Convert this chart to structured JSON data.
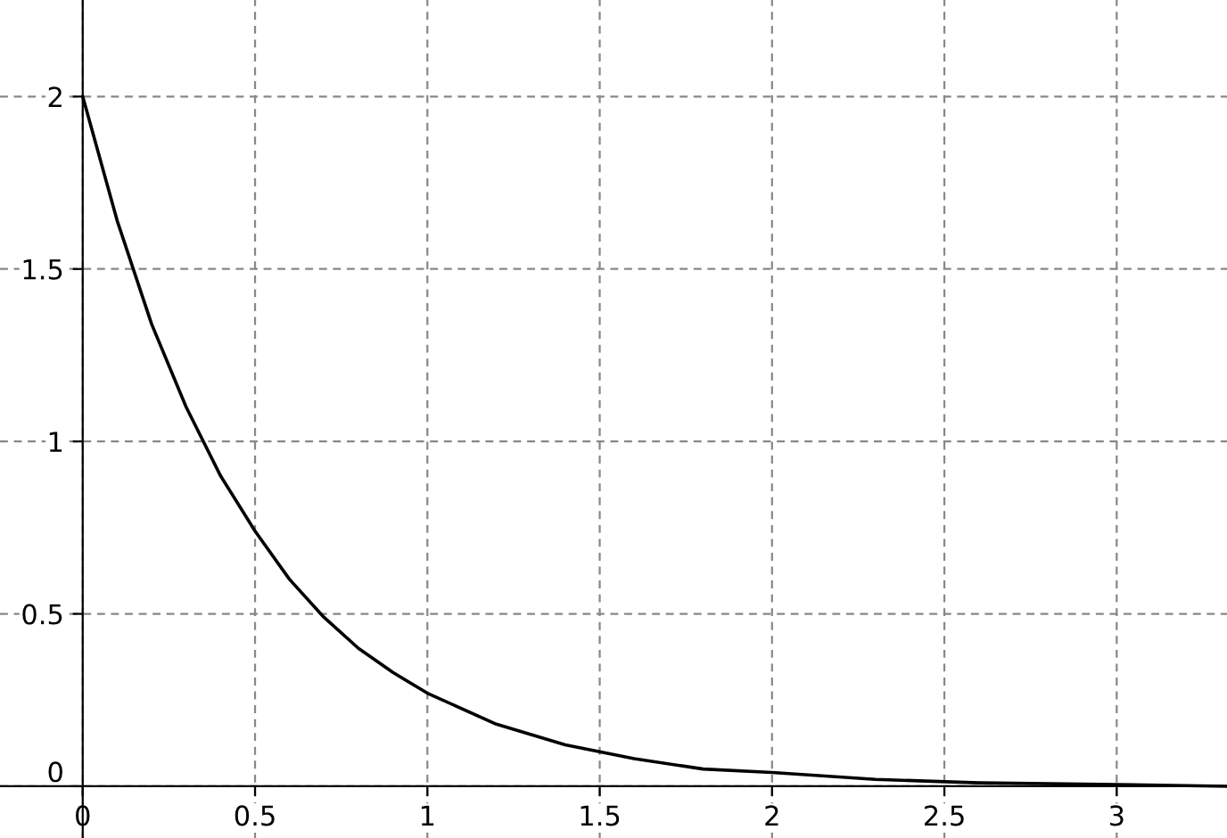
{
  "chart_data": {
    "type": "line",
    "x": [
      0,
      0.1,
      0.2,
      0.3,
      0.4,
      0.5,
      0.6,
      0.7,
      0.8,
      0.9,
      1.0,
      1.2,
      1.4,
      1.6,
      1.8,
      2.0,
      2.3,
      2.6,
      3.0,
      3.32
    ],
    "series": [
      {
        "color": "#000000",
        "values": [
          2,
          1.64,
          1.34,
          1.1,
          0.9,
          0.74,
          0.6,
          0.49,
          0.4,
          0.33,
          0.27,
          0.18,
          0.12,
          0.08,
          0.05,
          0.04,
          0.02,
          0.01,
          0.005,
          0
        ]
      }
    ],
    "xlim": [
      -0.24,
      3.32
    ],
    "ylim": [
      -0.15,
      2.28
    ],
    "xticks": [
      0,
      0.5,
      1,
      1.5,
      2,
      2.5,
      3
    ],
    "yticks": [
      0,
      0.5,
      1,
      1.5,
      2
    ],
    "grid": true,
    "marker": "none",
    "line_style": "solid"
  }
}
